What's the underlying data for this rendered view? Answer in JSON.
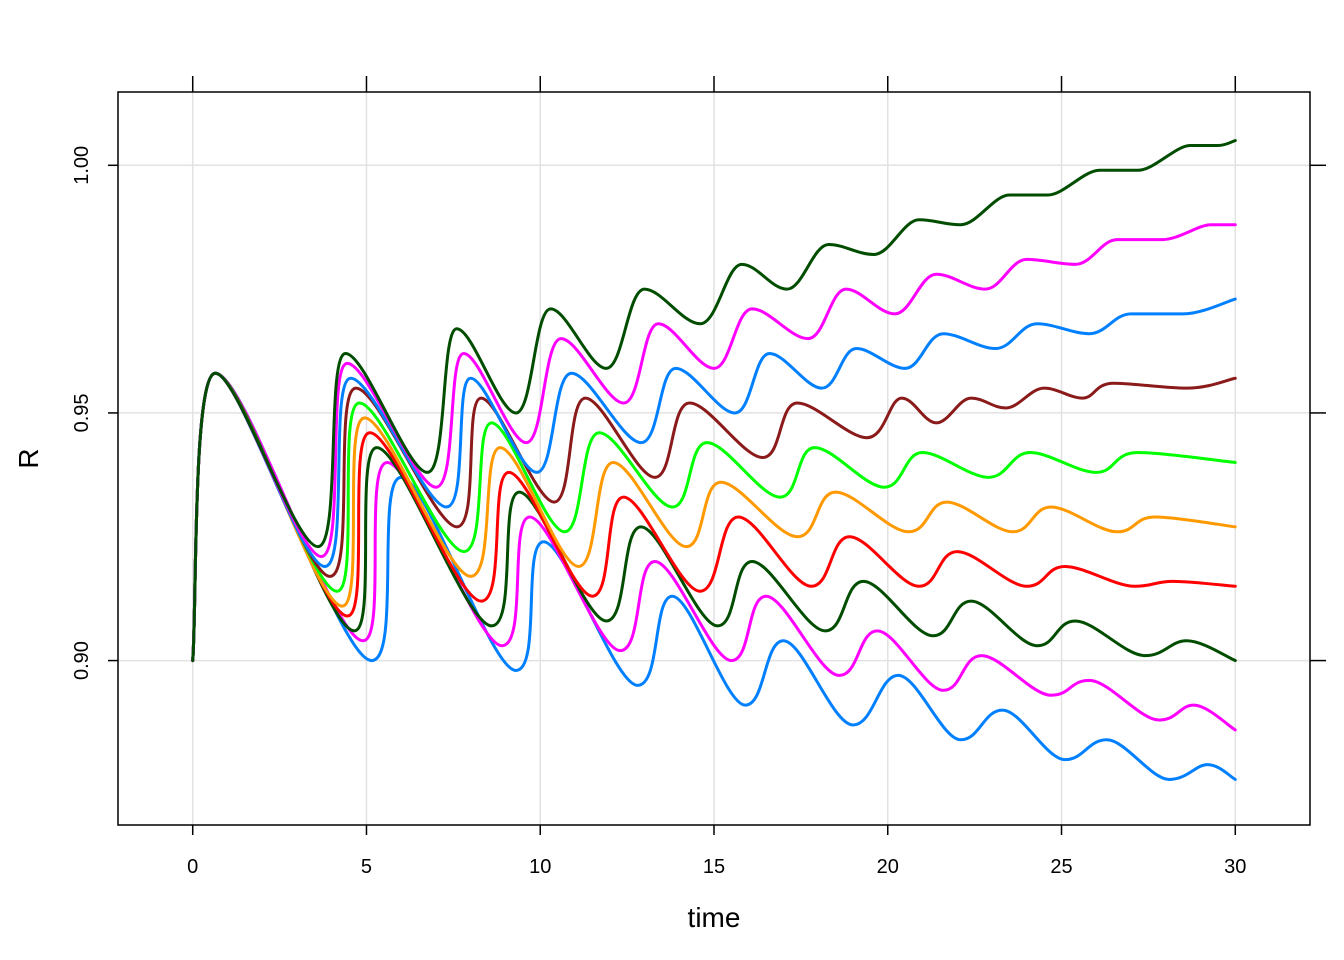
{
  "chart_data": {
    "type": "line",
    "xlabel": "time",
    "ylabel": "R",
    "xlim": [
      -2.15,
      32.15
    ],
    "ylim": [
      0.8668,
      1.0148
    ],
    "x_ticks": [
      0,
      5,
      10,
      15,
      20,
      25,
      30
    ],
    "x_tick_labels": [
      "0",
      "5",
      "10",
      "15",
      "20",
      "25",
      "30"
    ],
    "y_ticks": [
      0.9,
      0.95,
      1.0
    ],
    "y_tick_labels": [
      "0.90",
      "0.95",
      "1.00"
    ],
    "grid": true,
    "legend": "none",
    "series": [
      {
        "color": "#0080ff",
        "values": [
          [
            0,
            0.9
          ],
          [
            0.65,
            0.958
          ],
          [
            5.15,
            0.9
          ],
          [
            6.0,
            0.937
          ],
          [
            9.3,
            0.898
          ],
          [
            10.1,
            0.924
          ],
          [
            12.8,
            0.895
          ],
          [
            13.8,
            0.913
          ],
          [
            15.9,
            0.891
          ],
          [
            17.0,
            0.904
          ],
          [
            19.0,
            0.887
          ],
          [
            20.3,
            0.897
          ],
          [
            22.1,
            0.884
          ],
          [
            23.3,
            0.89
          ],
          [
            25.1,
            0.88
          ],
          [
            26.3,
            0.884
          ],
          [
            28.1,
            0.876
          ],
          [
            29.2,
            0.879
          ],
          [
            30,
            0.876
          ]
        ]
      },
      {
        "color": "#ff00ff",
        "values": [
          [
            0,
            0.9
          ],
          [
            0.65,
            0.958
          ],
          [
            4.9,
            0.904
          ],
          [
            5.6,
            0.94
          ],
          [
            8.9,
            0.903
          ],
          [
            9.7,
            0.929
          ],
          [
            12.3,
            0.902
          ],
          [
            13.3,
            0.92
          ],
          [
            15.5,
            0.9
          ],
          [
            16.5,
            0.913
          ],
          [
            18.6,
            0.897
          ],
          [
            19.7,
            0.906
          ],
          [
            21.6,
            0.894
          ],
          [
            22.7,
            0.901
          ],
          [
            24.7,
            0.893
          ],
          [
            25.8,
            0.896
          ],
          [
            27.8,
            0.888
          ],
          [
            28.8,
            0.891
          ],
          [
            30,
            0.886
          ]
        ]
      },
      {
        "color": "#004d00",
        "values": [
          [
            0,
            0.9
          ],
          [
            0.65,
            0.958
          ],
          [
            4.65,
            0.906
          ],
          [
            5.3,
            0.943
          ],
          [
            8.6,
            0.907
          ],
          [
            9.4,
            0.934
          ],
          [
            11.9,
            0.908
          ],
          [
            12.9,
            0.927
          ],
          [
            15.1,
            0.907
          ],
          [
            16.1,
            0.92
          ],
          [
            18.2,
            0.906
          ],
          [
            19.3,
            0.916
          ],
          [
            21.3,
            0.905
          ],
          [
            22.4,
            0.912
          ],
          [
            24.3,
            0.903
          ],
          [
            25.4,
            0.908
          ],
          [
            27.4,
            0.901
          ],
          [
            28.6,
            0.904
          ],
          [
            30,
            0.9
          ]
        ]
      },
      {
        "color": "#ff0000",
        "values": [
          [
            0,
            0.9
          ],
          [
            0.65,
            0.958
          ],
          [
            4.45,
            0.909
          ],
          [
            5.1,
            0.946
          ],
          [
            8.3,
            0.912
          ],
          [
            9.1,
            0.938
          ],
          [
            11.5,
            0.913
          ],
          [
            12.4,
            0.933
          ],
          [
            14.6,
            0.914
          ],
          [
            15.7,
            0.929
          ],
          [
            17.8,
            0.915
          ],
          [
            18.9,
            0.925
          ],
          [
            20.9,
            0.915
          ],
          [
            22.0,
            0.922
          ],
          [
            24.0,
            0.915
          ],
          [
            25.1,
            0.919
          ],
          [
            27.1,
            0.915
          ],
          [
            28.2,
            0.916
          ],
          [
            30,
            0.915
          ]
        ]
      },
      {
        "color": "#ff9900",
        "values": [
          [
            0,
            0.9
          ],
          [
            0.65,
            0.958
          ],
          [
            4.3,
            0.911
          ],
          [
            4.95,
            0.949
          ],
          [
            8.0,
            0.917
          ],
          [
            8.85,
            0.943
          ],
          [
            11.1,
            0.919
          ],
          [
            12.1,
            0.94
          ],
          [
            14.2,
            0.923
          ],
          [
            15.2,
            0.936
          ],
          [
            17.4,
            0.925
          ],
          [
            18.5,
            0.934
          ],
          [
            20.6,
            0.926
          ],
          [
            21.7,
            0.932
          ],
          [
            23.6,
            0.926
          ],
          [
            24.7,
            0.931
          ],
          [
            26.6,
            0.926
          ],
          [
            27.7,
            0.929
          ],
          [
            30,
            0.927
          ]
        ]
      },
      {
        "color": "#00ff00",
        "values": [
          [
            0,
            0.9
          ],
          [
            0.65,
            0.958
          ],
          [
            4.15,
            0.914
          ],
          [
            4.8,
            0.952
          ],
          [
            7.8,
            0.922
          ],
          [
            8.6,
            0.948
          ],
          [
            10.7,
            0.926
          ],
          [
            11.7,
            0.946
          ],
          [
            13.8,
            0.931
          ],
          [
            14.8,
            0.944
          ],
          [
            16.9,
            0.933
          ],
          [
            17.9,
            0.943
          ],
          [
            19.9,
            0.935
          ],
          [
            21.0,
            0.942
          ],
          [
            22.9,
            0.937
          ],
          [
            24.1,
            0.942
          ],
          [
            26.0,
            0.938
          ],
          [
            27.2,
            0.942
          ],
          [
            30,
            0.94
          ]
        ]
      },
      {
        "color": "#8b1a1a",
        "values": [
          [
            0,
            0.9
          ],
          [
            0.65,
            0.958
          ],
          [
            3.95,
            0.917
          ],
          [
            4.7,
            0.955
          ],
          [
            7.6,
            0.927
          ],
          [
            8.3,
            0.953
          ],
          [
            10.4,
            0.932
          ],
          [
            11.3,
            0.953
          ],
          [
            13.3,
            0.937
          ],
          [
            14.3,
            0.952
          ],
          [
            16.4,
            0.941
          ],
          [
            17.4,
            0.952
          ],
          [
            19.4,
            0.945
          ],
          [
            20.4,
            0.953
          ],
          [
            21.4,
            0.948
          ],
          [
            22.4,
            0.953
          ],
          [
            23.4,
            0.951
          ],
          [
            24.5,
            0.955
          ],
          [
            25.6,
            0.953
          ],
          [
            26.5,
            0.956
          ],
          [
            28.6,
            0.955
          ],
          [
            30,
            0.957
          ]
        ]
      },
      {
        "color": "#0080ff",
        "values": [
          [
            0,
            0.9
          ],
          [
            0.65,
            0.958
          ],
          [
            3.8,
            0.919
          ],
          [
            4.55,
            0.957
          ],
          [
            7.3,
            0.931
          ],
          [
            8.0,
            0.957
          ],
          [
            9.9,
            0.938
          ],
          [
            10.9,
            0.958
          ],
          [
            12.9,
            0.944
          ],
          [
            13.9,
            0.959
          ],
          [
            15.6,
            0.95
          ],
          [
            16.6,
            0.962
          ],
          [
            18.1,
            0.955
          ],
          [
            19.1,
            0.963
          ],
          [
            20.5,
            0.959
          ],
          [
            21.6,
            0.966
          ],
          [
            23.1,
            0.963
          ],
          [
            24.3,
            0.968
          ],
          [
            25.8,
            0.966
          ],
          [
            27.0,
            0.97
          ],
          [
            28.5,
            0.97
          ],
          [
            30,
            0.973
          ]
        ]
      },
      {
        "color": "#ff00ff",
        "values": [
          [
            0,
            0.9
          ],
          [
            0.65,
            0.958
          ],
          [
            3.7,
            0.921
          ],
          [
            4.45,
            0.96
          ],
          [
            7.0,
            0.935
          ],
          [
            7.8,
            0.962
          ],
          [
            9.6,
            0.944
          ],
          [
            10.6,
            0.965
          ],
          [
            12.4,
            0.952
          ],
          [
            13.4,
            0.968
          ],
          [
            15.0,
            0.959
          ],
          [
            16.1,
            0.971
          ],
          [
            17.7,
            0.965
          ],
          [
            18.8,
            0.975
          ],
          [
            20.2,
            0.97
          ],
          [
            21.4,
            0.978
          ],
          [
            22.8,
            0.975
          ],
          [
            24.0,
            0.981
          ],
          [
            25.4,
            0.98
          ],
          [
            26.6,
            0.985
          ],
          [
            27.9,
            0.985
          ],
          [
            29.3,
            0.988
          ],
          [
            30,
            0.988
          ]
        ]
      },
      {
        "color": "#004d00",
        "values": [
          [
            0,
            0.9
          ],
          [
            0.65,
            0.958
          ],
          [
            3.6,
            0.923
          ],
          [
            4.4,
            0.962
          ],
          [
            6.75,
            0.938
          ],
          [
            7.6,
            0.967
          ],
          [
            9.3,
            0.95
          ],
          [
            10.3,
            0.971
          ],
          [
            11.9,
            0.959
          ],
          [
            13.0,
            0.975
          ],
          [
            14.6,
            0.968
          ],
          [
            15.8,
            0.98
          ],
          [
            17.1,
            0.975
          ],
          [
            18.3,
            0.984
          ],
          [
            19.6,
            0.982
          ],
          [
            20.9,
            0.989
          ],
          [
            22.1,
            0.988
          ],
          [
            23.5,
            0.994
          ],
          [
            24.6,
            0.994
          ],
          [
            26.1,
            0.999
          ],
          [
            27.2,
            0.999
          ],
          [
            28.7,
            1.004
          ],
          [
            29.5,
            1.004
          ],
          [
            30,
            1.005
          ]
        ]
      }
    ]
  }
}
